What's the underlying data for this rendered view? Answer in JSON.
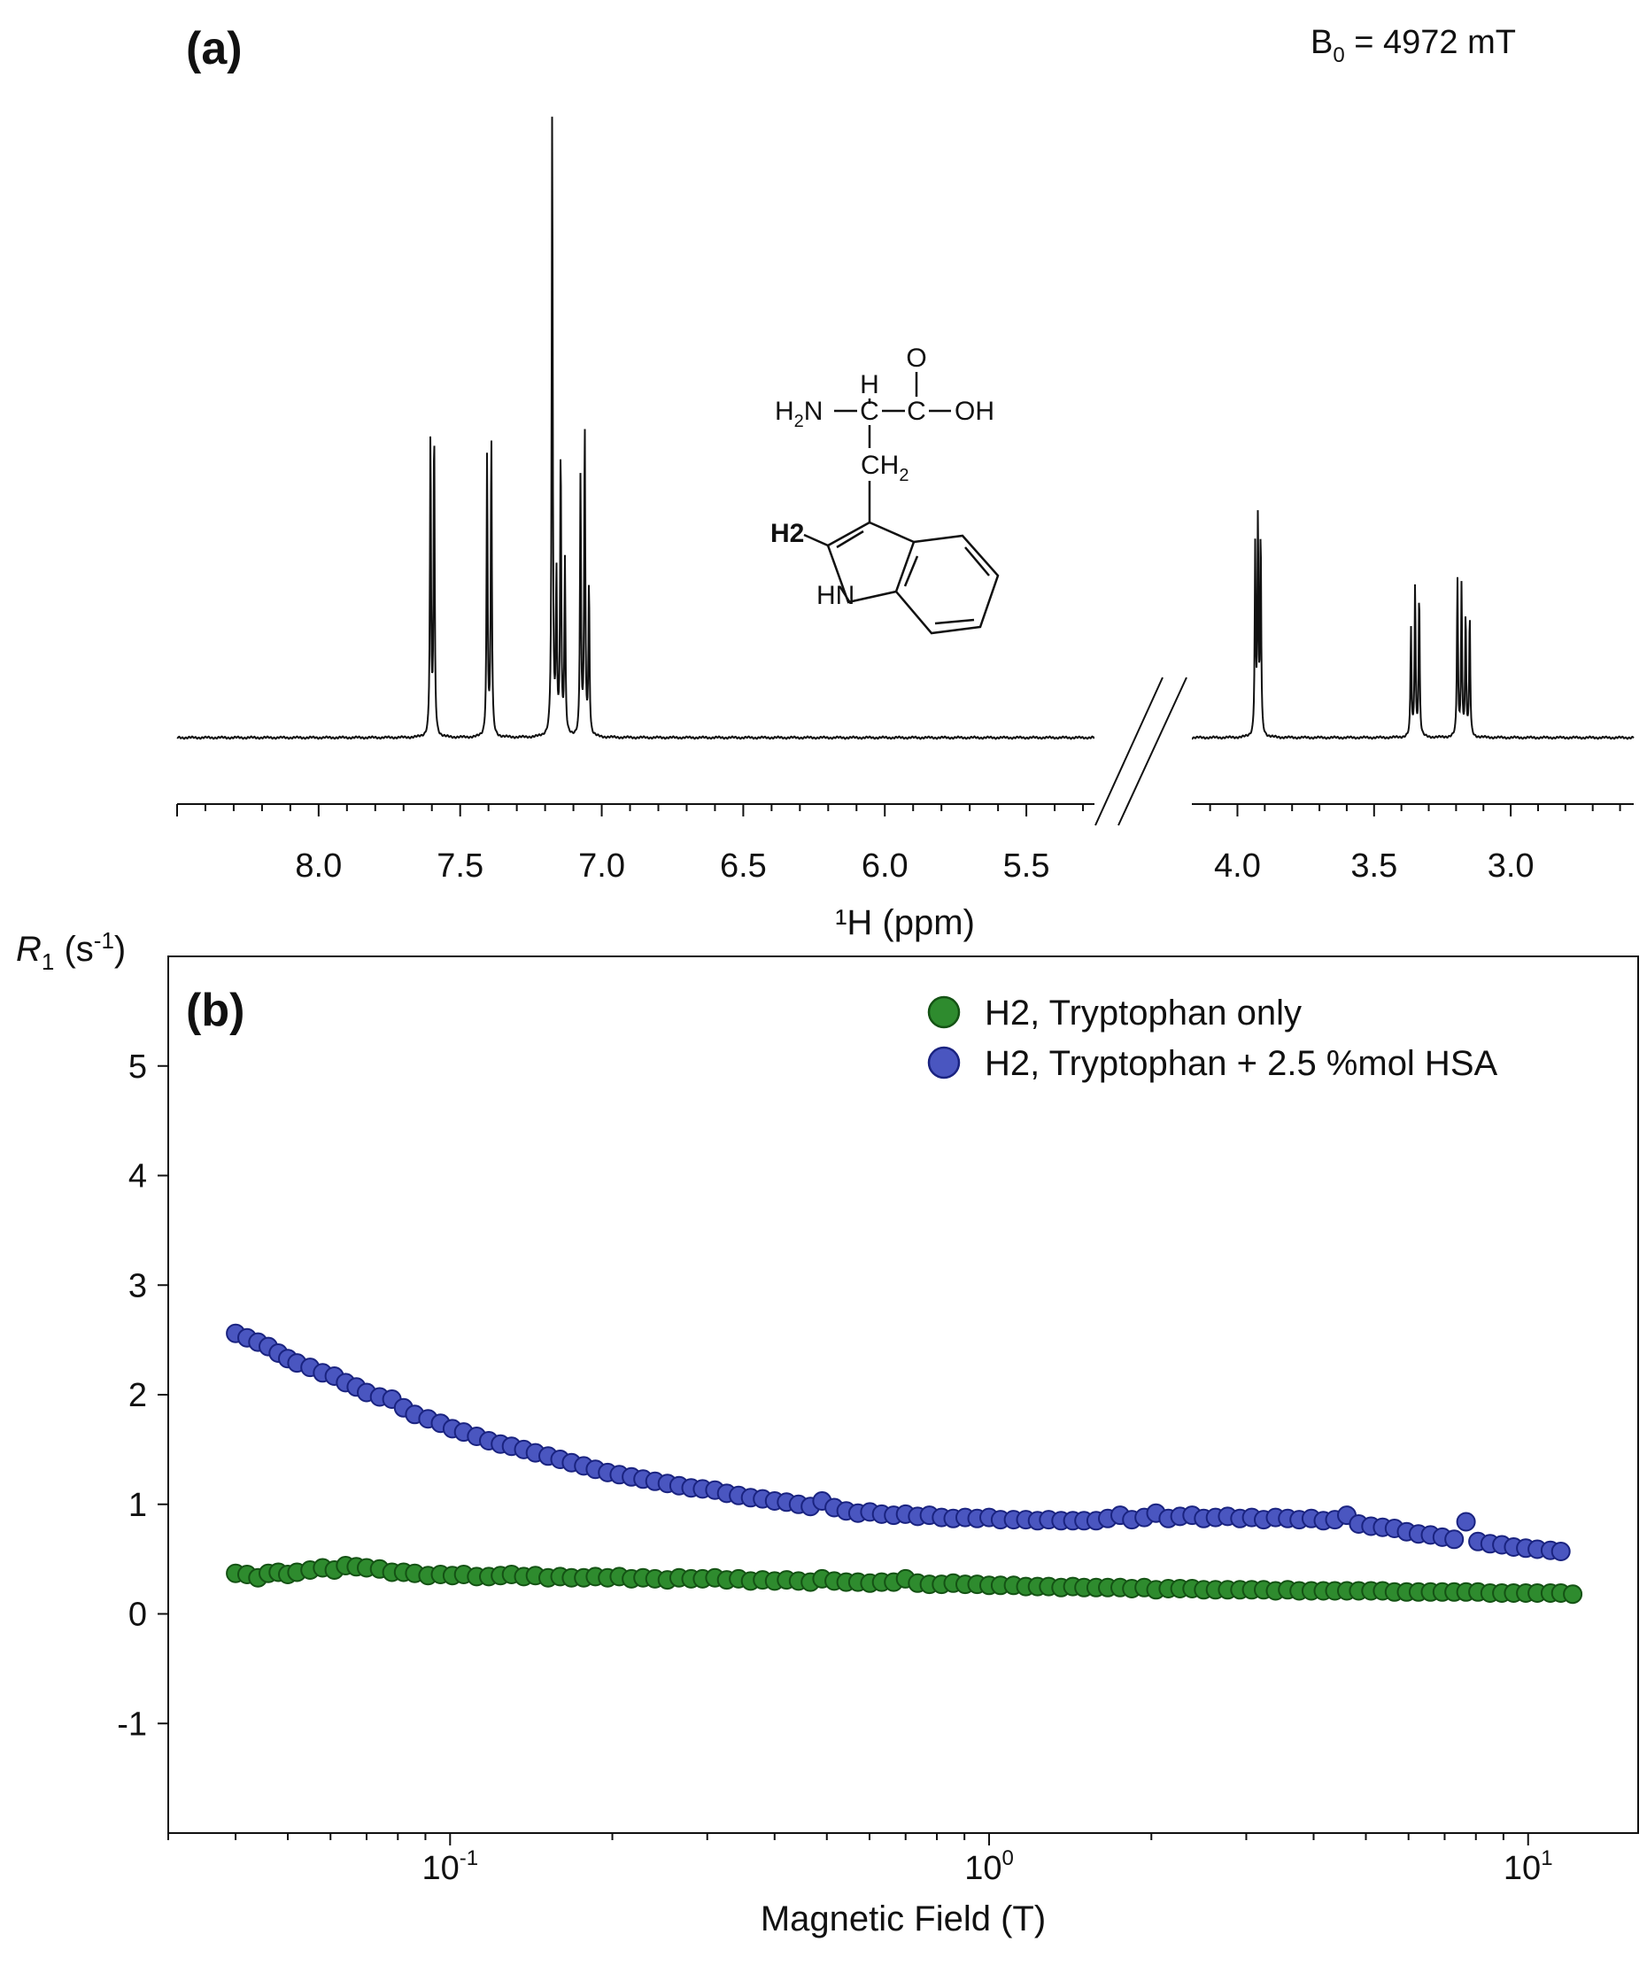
{
  "chart_data": [
    {
      "panel_label": "(a)",
      "type": "line",
      "annotation": "B0 = 4972 mT",
      "annotation_main": "B",
      "annotation_sub": "0",
      "annotation_rest": " = 4972 mT",
      "xlabel": "¹H (ppm)",
      "x_reversed": true,
      "axis_break": true,
      "segments": [
        {
          "xlim": [
            8.5,
            5.2
          ],
          "ticks": [
            {
              "v": 8.0,
              "label": "8.0"
            },
            {
              "v": 7.5,
              "label": "7.5"
            },
            {
              "v": 7.0,
              "label": "7.0"
            },
            {
              "v": 6.5,
              "label": "6.5"
            },
            {
              "v": 6.0,
              "label": "6.0"
            },
            {
              "v": 5.5,
              "label": "5.5"
            }
          ]
        },
        {
          "xlim": [
            4.17,
            2.55
          ],
          "ticks": [
            {
              "v": 4.0,
              "label": "4.0"
            },
            {
              "v": 3.5,
              "label": "3.5"
            },
            {
              "v": 3.0,
              "label": "3.0"
            }
          ]
        }
      ],
      "peaks": [
        {
          "ppm": 7.605,
          "h": 0.42
        },
        {
          "ppm": 7.592,
          "h": 0.43
        },
        {
          "ppm": 7.405,
          "h": 0.39
        },
        {
          "ppm": 7.39,
          "h": 0.42
        },
        {
          "ppm": 7.175,
          "h": 0.87
        },
        {
          "ppm": 7.16,
          "h": 0.22
        },
        {
          "ppm": 7.145,
          "h": 0.4
        },
        {
          "ppm": 7.13,
          "h": 0.24
        },
        {
          "ppm": 7.075,
          "h": 0.36
        },
        {
          "ppm": 7.06,
          "h": 0.43
        },
        {
          "ppm": 7.045,
          "h": 0.21
        },
        {
          "ppm": 3.935,
          "h": 0.26
        },
        {
          "ppm": 3.925,
          "h": 0.3
        },
        {
          "ppm": 3.915,
          "h": 0.28
        },
        {
          "ppm": 3.365,
          "h": 0.15
        },
        {
          "ppm": 3.35,
          "h": 0.21
        },
        {
          "ppm": 3.335,
          "h": 0.2
        },
        {
          "ppm": 3.195,
          "h": 0.22
        },
        {
          "ppm": 3.18,
          "h": 0.21
        },
        {
          "ppm": 3.165,
          "h": 0.17
        },
        {
          "ppm": 3.15,
          "h": 0.17
        }
      ],
      "molecule_labels": {
        "O": "O",
        "H": "H",
        "H2N": "H",
        "H2N_sub": "2",
        "H2N_rest": "N",
        "C1": "C",
        "C2": "C",
        "OH": "OH",
        "CH2": "CH",
        "CH2_sub": "2",
        "H2": "H2",
        "HN": "HN"
      }
    },
    {
      "panel_label": "(b)",
      "type": "scatter",
      "xlabel": "Magnetic Field (T)",
      "ylabel_main": "R",
      "ylabel_sub": "1",
      "ylabel_rest": " (s",
      "ylabel_sup": "-1",
      "ylabel_close": ")",
      "x_scale": "log",
      "xlim": [
        0.03,
        16
      ],
      "ylim": [
        -2,
        6
      ],
      "yticks": [
        {
          "v": 5,
          "label": "5"
        },
        {
          "v": 4,
          "label": "4"
        },
        {
          "v": 3,
          "label": "3"
        },
        {
          "v": 2,
          "label": "2"
        },
        {
          "v": 1,
          "label": "1"
        },
        {
          "v": 0,
          "label": "0"
        },
        {
          "v": -1,
          "label": "-1"
        }
      ],
      "xticks": [
        {
          "v": 0.1,
          "base": "10",
          "exp": "-1"
        },
        {
          "v": 1,
          "base": "10",
          "exp": "0"
        },
        {
          "v": 10,
          "base": "10",
          "exp": "1"
        }
      ],
      "legend_position": "top-right",
      "series": [
        {
          "name": "H2, Tryptophan only",
          "color": "#2e8b2e",
          "edge": "#145214",
          "x": [
            0.04,
            0.042,
            0.044,
            0.046,
            0.048,
            0.05,
            0.052,
            0.055,
            0.058,
            0.061,
            0.064,
            0.067,
            0.07,
            0.074,
            0.078,
            0.082,
            0.086,
            0.091,
            0.096,
            0.101,
            0.106,
            0.112,
            0.118,
            0.124,
            0.13,
            0.137,
            0.144,
            0.152,
            0.16,
            0.168,
            0.177,
            0.186,
            0.196,
            0.206,
            0.217,
            0.228,
            0.24,
            0.253,
            0.266,
            0.28,
            0.294,
            0.31,
            0.326,
            0.343,
            0.361,
            0.38,
            0.4,
            0.421,
            0.443,
            0.466,
            0.49,
            0.516,
            0.543,
            0.571,
            0.601,
            0.632,
            0.665,
            0.7,
            0.737,
            0.775,
            0.816,
            0.858,
            0.903,
            0.95,
            1.0,
            1.05,
            1.11,
            1.17,
            1.23,
            1.29,
            1.36,
            1.43,
            1.5,
            1.58,
            1.66,
            1.75,
            1.84,
            1.94,
            2.04,
            2.15,
            2.26,
            2.38,
            2.5,
            2.63,
            2.77,
            2.92,
            3.07,
            3.23,
            3.4,
            3.58,
            3.76,
            3.96,
            4.17,
            4.38,
            4.61,
            4.85,
            5.11,
            5.37,
            5.65,
            5.95,
            6.26,
            6.59,
            6.93,
            7.29,
            7.67,
            8.07,
            8.5,
            8.94,
            9.4,
            9.9,
            10.4,
            11.0,
            11.5,
            12.1
          ],
          "y": [
            0.37,
            0.36,
            0.33,
            0.37,
            0.38,
            0.36,
            0.38,
            0.4,
            0.42,
            0.4,
            0.44,
            0.43,
            0.42,
            0.41,
            0.38,
            0.38,
            0.37,
            0.35,
            0.36,
            0.35,
            0.36,
            0.34,
            0.34,
            0.35,
            0.36,
            0.34,
            0.35,
            0.33,
            0.34,
            0.33,
            0.33,
            0.34,
            0.33,
            0.34,
            0.32,
            0.33,
            0.32,
            0.31,
            0.33,
            0.32,
            0.32,
            0.33,
            0.31,
            0.32,
            0.3,
            0.31,
            0.3,
            0.31,
            0.3,
            0.29,
            0.32,
            0.3,
            0.29,
            0.29,
            0.28,
            0.29,
            0.29,
            0.32,
            0.28,
            0.27,
            0.27,
            0.28,
            0.27,
            0.27,
            0.26,
            0.26,
            0.26,
            0.25,
            0.25,
            0.25,
            0.24,
            0.25,
            0.24,
            0.24,
            0.24,
            0.24,
            0.23,
            0.24,
            0.22,
            0.23,
            0.23,
            0.23,
            0.22,
            0.22,
            0.22,
            0.22,
            0.22,
            0.22,
            0.21,
            0.22,
            0.21,
            0.21,
            0.21,
            0.21,
            0.21,
            0.21,
            0.21,
            0.21,
            0.2,
            0.2,
            0.2,
            0.2,
            0.2,
            0.2,
            0.2,
            0.2,
            0.19,
            0.19,
            0.19,
            0.19,
            0.19,
            0.19,
            0.19,
            0.18
          ]
        },
        {
          "name": "H2, Tryptophan + 2.5 %mol HSA",
          "color": "#4a56c0",
          "edge": "#1a2380",
          "x": [
            0.04,
            0.042,
            0.044,
            0.046,
            0.048,
            0.05,
            0.052,
            0.055,
            0.058,
            0.061,
            0.064,
            0.067,
            0.07,
            0.074,
            0.078,
            0.082,
            0.086,
            0.091,
            0.096,
            0.101,
            0.106,
            0.112,
            0.118,
            0.124,
            0.13,
            0.137,
            0.144,
            0.152,
            0.16,
            0.168,
            0.177,
            0.186,
            0.196,
            0.206,
            0.217,
            0.228,
            0.24,
            0.253,
            0.266,
            0.28,
            0.294,
            0.31,
            0.326,
            0.343,
            0.361,
            0.38,
            0.4,
            0.421,
            0.443,
            0.466,
            0.49,
            0.516,
            0.543,
            0.571,
            0.601,
            0.632,
            0.665,
            0.7,
            0.737,
            0.775,
            0.816,
            0.858,
            0.903,
            0.95,
            1.0,
            1.05,
            1.11,
            1.17,
            1.23,
            1.29,
            1.36,
            1.43,
            1.5,
            1.58,
            1.66,
            1.75,
            1.84,
            1.94,
            2.04,
            2.15,
            2.26,
            2.38,
            2.5,
            2.63,
            2.77,
            2.92,
            3.07,
            3.23,
            3.4,
            3.58,
            3.76,
            3.96,
            4.17,
            4.38,
            4.61,
            4.85,
            5.11,
            5.37,
            5.65,
            5.95,
            6.26,
            6.59,
            6.93,
            7.29,
            7.67,
            8.07,
            8.5,
            8.94,
            9.4,
            9.9,
            10.4,
            11.0,
            11.5
          ],
          "y": [
            2.56,
            2.52,
            2.48,
            2.44,
            2.38,
            2.33,
            2.29,
            2.25,
            2.2,
            2.17,
            2.11,
            2.07,
            2.02,
            1.98,
            1.96,
            1.88,
            1.82,
            1.78,
            1.74,
            1.69,
            1.66,
            1.62,
            1.58,
            1.55,
            1.53,
            1.5,
            1.47,
            1.44,
            1.41,
            1.38,
            1.35,
            1.32,
            1.29,
            1.27,
            1.25,
            1.23,
            1.21,
            1.19,
            1.17,
            1.15,
            1.14,
            1.13,
            1.1,
            1.08,
            1.06,
            1.05,
            1.03,
            1.02,
            1.0,
            0.98,
            1.03,
            0.97,
            0.94,
            0.92,
            0.93,
            0.91,
            0.9,
            0.91,
            0.89,
            0.9,
            0.88,
            0.87,
            0.88,
            0.87,
            0.88,
            0.86,
            0.86,
            0.86,
            0.85,
            0.86,
            0.85,
            0.85,
            0.85,
            0.85,
            0.87,
            0.9,
            0.86,
            0.88,
            0.92,
            0.87,
            0.89,
            0.9,
            0.87,
            0.88,
            0.89,
            0.87,
            0.88,
            0.86,
            0.88,
            0.87,
            0.86,
            0.87,
            0.85,
            0.86,
            0.9,
            0.82,
            0.8,
            0.79,
            0.78,
            0.75,
            0.73,
            0.72,
            0.7,
            0.68,
            0.84,
            0.66,
            0.64,
            0.63,
            0.61,
            0.6,
            0.59,
            0.58,
            0.57
          ]
        }
      ]
    }
  ]
}
